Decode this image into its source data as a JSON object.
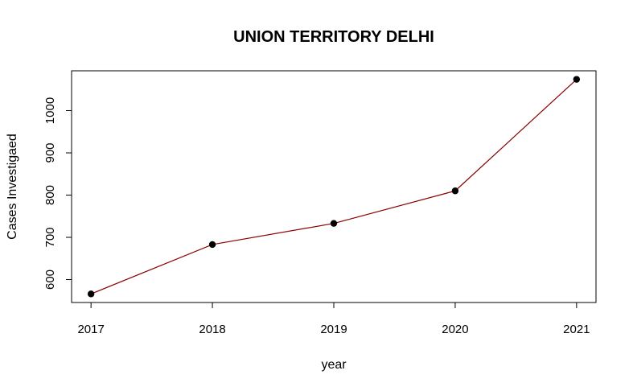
{
  "chart_data": {
    "type": "line",
    "title": "UNION TERRITORY DELHI",
    "xlabel": "year",
    "ylabel": "Cases Investigaed",
    "x": [
      2017,
      2018,
      2019,
      2020,
      2021
    ],
    "y": [
      566,
      683,
      733,
      810,
      1074
    ],
    "x_ticks": [
      "2017",
      "2018",
      "2019",
      "2020",
      "2021"
    ],
    "y_ticks": [
      "600",
      "700",
      "800",
      "900",
      "1000"
    ],
    "y_tick_values": [
      600,
      700,
      800,
      900,
      1000
    ],
    "xlim": [
      2016.84,
      2021.16
    ],
    "ylim": [
      545.7,
      1094.3
    ],
    "line_color": "#8b0000",
    "point_color": "#000000",
    "grid": false,
    "legend": "none"
  }
}
